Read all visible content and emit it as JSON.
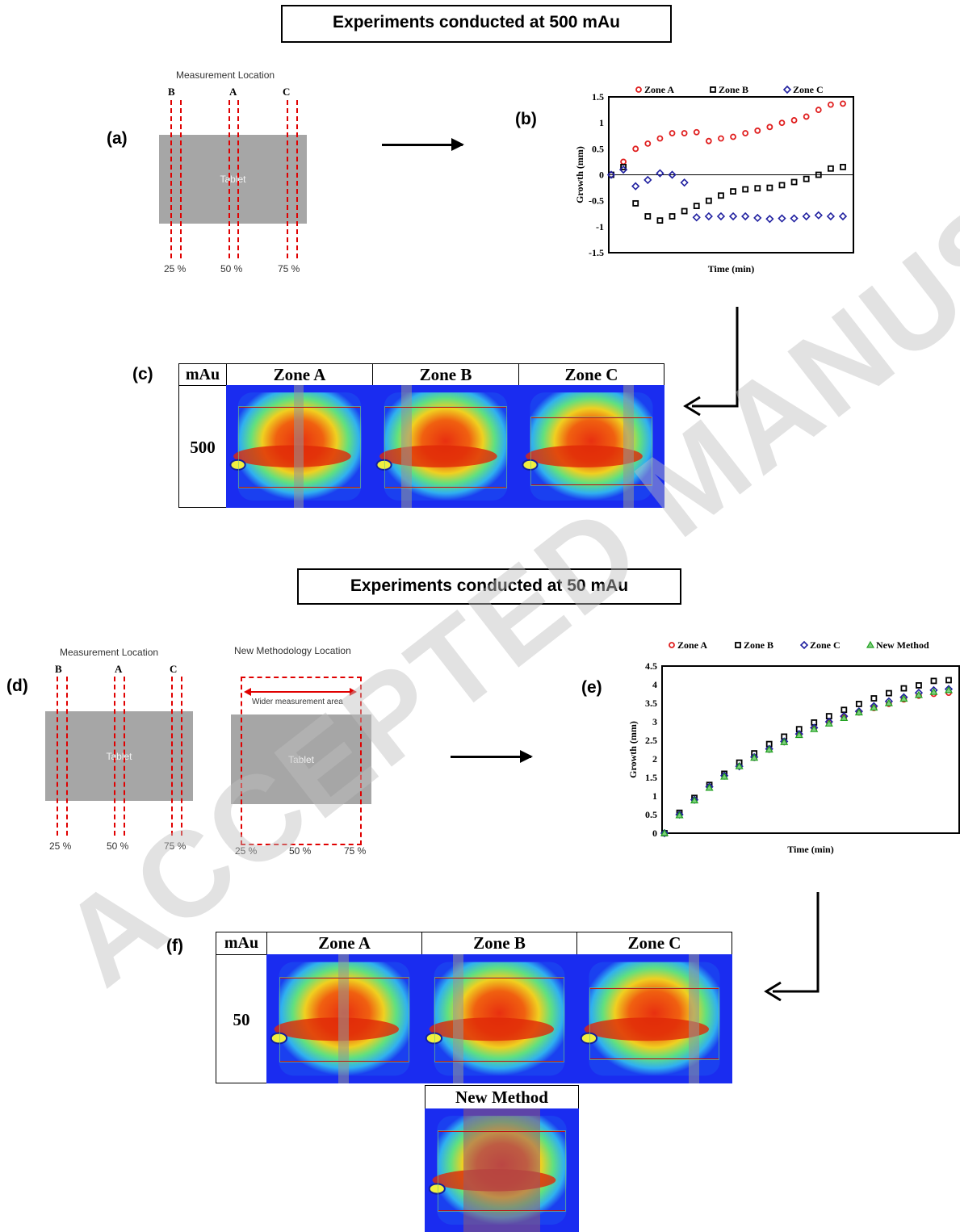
{
  "section1": {
    "title": "Experiments conducted at 500 mAu"
  },
  "section2": {
    "title": "Experiments conducted at 50 mAu"
  },
  "panels": {
    "a": "(a)",
    "b": "(b)",
    "c": "(c)",
    "d": "(d)",
    "e": "(e)",
    "f": "(f)"
  },
  "schematic_a": {
    "title": "Measurement Location",
    "zones": [
      "B",
      "A",
      "C"
    ],
    "percents": [
      "25 %",
      "50 %",
      "75 %"
    ],
    "tablet": "Tablet"
  },
  "schematic_d": {
    "title": "Measurement Location",
    "zones": [
      "B",
      "A",
      "C"
    ],
    "percents": [
      "25 %",
      "50 %",
      "75 %"
    ],
    "tablet": "Tablet"
  },
  "schematic_new": {
    "title": "New Methodology Location",
    "wider": "Wider measurement area",
    "tablet": "Tablet",
    "percents": [
      "25 %",
      "50 %",
      "75 %"
    ]
  },
  "table_c": {
    "header": [
      "mAu",
      "Zone A",
      "Zone B",
      "Zone C"
    ],
    "row_label": "500"
  },
  "table_f": {
    "header": [
      "mAu",
      "Zone A",
      "Zone B",
      "Zone C"
    ],
    "row_label": "50",
    "extra": "New Method"
  },
  "watermark": "ACCEPTED MANUSCRIPT",
  "colors": {
    "zoneA": "#e02020",
    "zoneB": "#000000",
    "zoneC": "#2020a0",
    "newMethod": "#20a020"
  },
  "chart_data": [
    {
      "type": "scatter",
      "xlabel": "Time (min)",
      "ylabel": "Growth (mm)",
      "ylim": [
        -1.5,
        1.5
      ],
      "yticks": [
        "1.5",
        "1",
        "0.5",
        "0",
        "-0.5",
        "-1",
        "-1.5"
      ],
      "legend": "top",
      "x": [
        0,
        1,
        2,
        3,
        4,
        5,
        6,
        7,
        8,
        9,
        10,
        11,
        12,
        13,
        14,
        15,
        16,
        17,
        18,
        19
      ],
      "series": [
        {
          "name": "Zone A",
          "marker": "circle",
          "color": "#e02020",
          "values": [
            0,
            0.25,
            0.5,
            0.6,
            0.7,
            0.8,
            0.8,
            0.82,
            0.65,
            0.7,
            0.73,
            0.8,
            0.85,
            0.92,
            1.0,
            1.05,
            1.12,
            1.25,
            1.35,
            1.37
          ]
        },
        {
          "name": "Zone B",
          "marker": "square",
          "color": "#000000",
          "values": [
            0,
            0.15,
            -0.55,
            -0.8,
            -0.88,
            -0.8,
            -0.7,
            -0.6,
            -0.5,
            -0.4,
            -0.32,
            -0.28,
            -0.26,
            -0.25,
            -0.2,
            -0.14,
            -0.08,
            0.0,
            0.12,
            0.15
          ]
        },
        {
          "name": "Zone C",
          "marker": "diamond",
          "color": "#2020a0",
          "values": [
            0,
            0.1,
            -0.22,
            -0.1,
            0.03,
            0.0,
            -0.15,
            -0.82,
            -0.8,
            -0.8,
            -0.8,
            -0.8,
            -0.83,
            -0.85,
            -0.84,
            -0.84,
            -0.8,
            -0.78,
            -0.8,
            -0.8
          ]
        }
      ]
    },
    {
      "type": "scatter",
      "xlabel": "Time (min)",
      "ylabel": "Growth (mm)",
      "ylim": [
        0,
        4.5
      ],
      "yticks": [
        "4.5",
        "4",
        "3.5",
        "3",
        "2.5",
        "2",
        "1.5",
        "1",
        "0.5",
        "0"
      ],
      "legend": "top",
      "x": [
        0,
        1,
        2,
        3,
        4,
        5,
        6,
        7,
        8,
        9,
        10,
        11,
        12,
        13,
        14,
        15,
        16,
        17,
        18,
        19
      ],
      "series": [
        {
          "name": "Zone A",
          "marker": "circle",
          "color": "#e02020",
          "values": [
            0,
            0.5,
            0.9,
            1.25,
            1.55,
            1.8,
            2.03,
            2.25,
            2.45,
            2.65,
            2.82,
            2.98,
            3.12,
            3.25,
            3.37,
            3.48,
            3.6,
            3.7,
            3.75,
            3.78
          ]
        },
        {
          "name": "Zone B",
          "marker": "square",
          "color": "#000000",
          "values": [
            0,
            0.55,
            0.95,
            1.3,
            1.6,
            1.9,
            2.15,
            2.4,
            2.6,
            2.8,
            2.98,
            3.15,
            3.32,
            3.48,
            3.63,
            3.77,
            3.9,
            3.98,
            4.1,
            4.12
          ]
        },
        {
          "name": "Zone C",
          "marker": "diamond",
          "color": "#2020a0",
          "values": [
            0,
            0.5,
            0.9,
            1.25,
            1.55,
            1.8,
            2.05,
            2.27,
            2.47,
            2.67,
            2.84,
            3.0,
            3.15,
            3.28,
            3.42,
            3.55,
            3.66,
            3.78,
            3.85,
            3.88
          ]
        },
        {
          "name": "New Method",
          "marker": "triangle",
          "color": "#20a020",
          "values": [
            0,
            0.48,
            0.88,
            1.22,
            1.52,
            1.8,
            2.03,
            2.25,
            2.45,
            2.64,
            2.8,
            2.95,
            3.1,
            3.25,
            3.38,
            3.5,
            3.62,
            3.72,
            3.8,
            3.85
          ]
        }
      ]
    }
  ]
}
